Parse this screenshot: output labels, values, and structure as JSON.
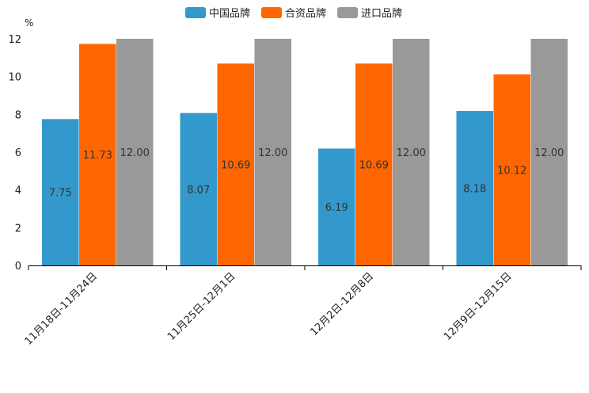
{
  "chart_data": {
    "type": "bar",
    "title": "",
    "unit_label": "%",
    "xlabel": "",
    "ylabel": "",
    "ylim": [
      0,
      12
    ],
    "yticks": [
      0,
      2,
      4,
      6,
      8,
      10,
      12
    ],
    "categories": [
      "11月18日-11月24日",
      "11月25日-12月1日",
      "12月2日-12月8日",
      "12月9日-12月15日"
    ],
    "series": [
      {
        "name": "中国品牌",
        "color": "#3399cc",
        "values": [
          7.75,
          8.07,
          6.19,
          8.18
        ]
      },
      {
        "name": "合资品牌",
        "color": "#ff6600",
        "values": [
          11.73,
          10.69,
          10.69,
          10.12
        ]
      },
      {
        "name": "进口品牌",
        "color": "#999999",
        "values": [
          12.0,
          12.0,
          12.0,
          12.0
        ]
      }
    ],
    "legend": "top-center",
    "grid": false
  }
}
